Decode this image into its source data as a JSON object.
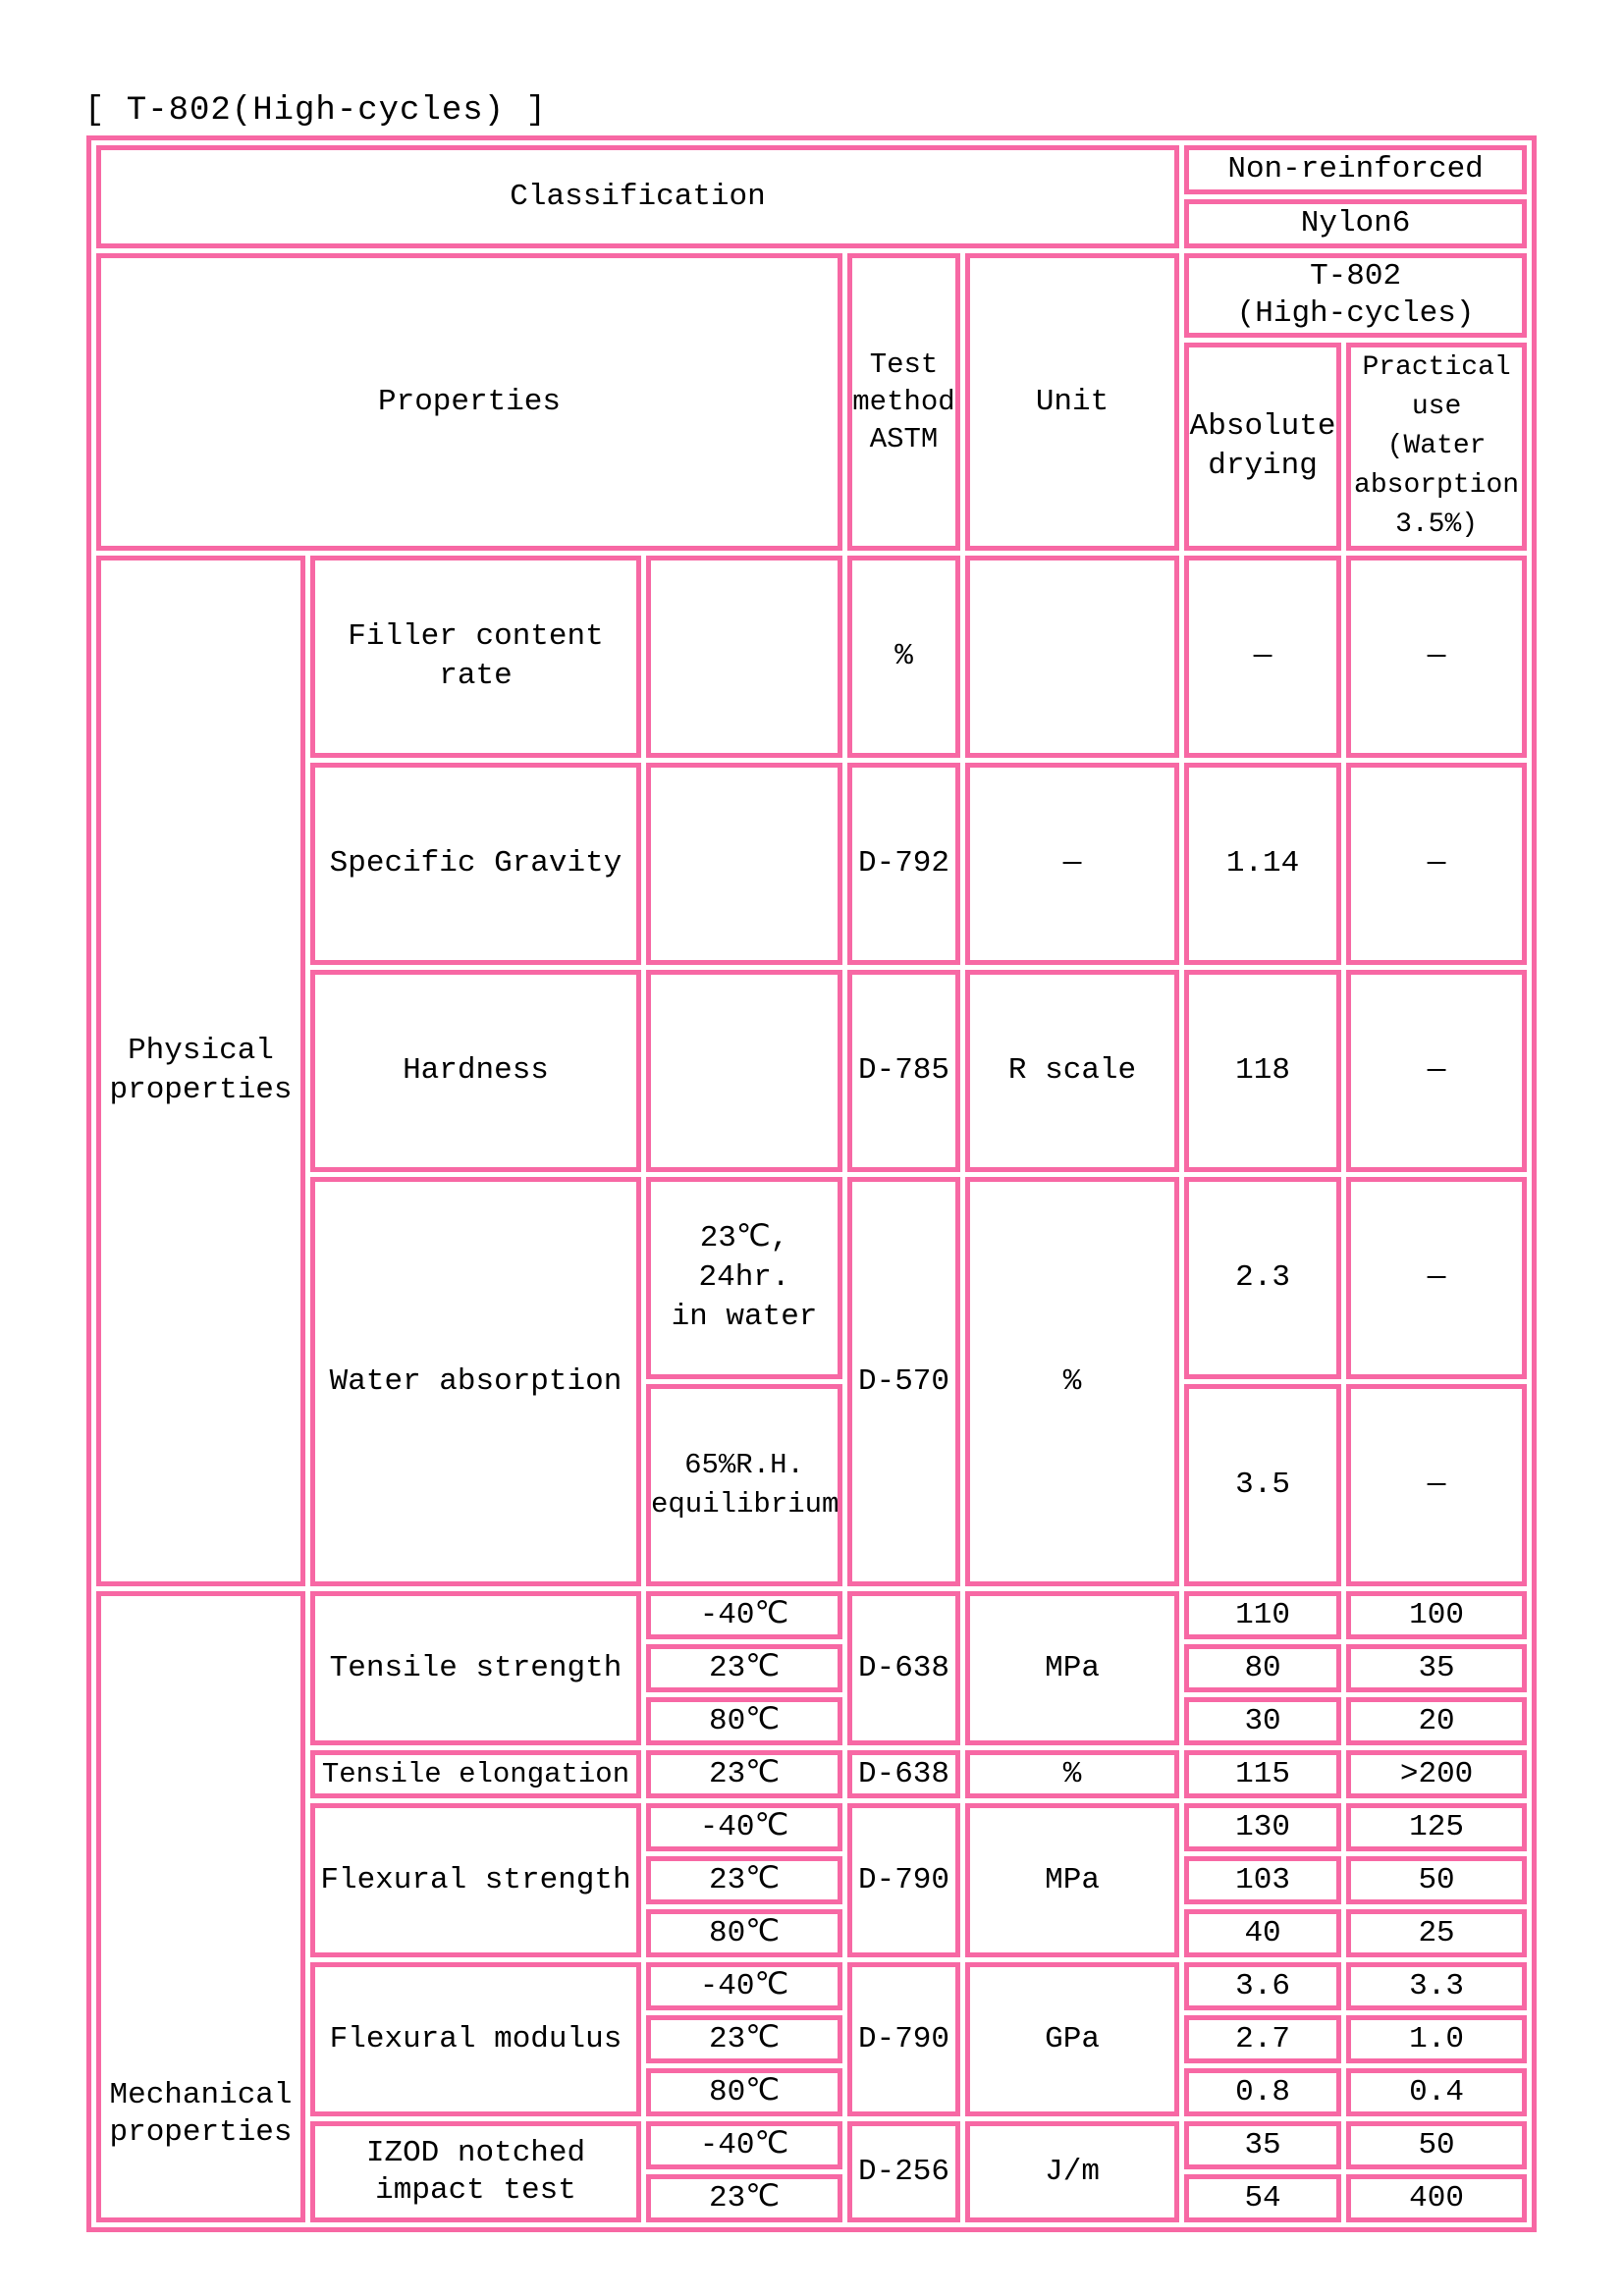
{
  "title": "[ T-802(High-cycles) ]",
  "colors": {
    "border": "#F768A4",
    "text": "#000000",
    "background": "#FFFFFF"
  },
  "header": {
    "classification": "Classification",
    "reinforcement": "Non-reinforced",
    "material": "Nylon6",
    "grade": "T-802\n(High-cycles)",
    "properties": "Properties",
    "test_method": "Test\nmethod\nASTM",
    "unit": "Unit",
    "absolute_drying": "Absolute\ndrying",
    "practical_use": "Practical\nuse\n(Water\nabsorption\n3.5%)"
  },
  "groups": {
    "physical": "Physical\nproperties",
    "mechanical": "Mechanical\nproperties"
  },
  "conditions": {
    "minus40": "-40℃",
    "c23": "23℃",
    "c80": "80℃",
    "water24h": "23℃, 24hr.\nin water",
    "rh65": "65%R.H.\nequilibrium"
  },
  "cells": {
    "filler_name": "Filler content\nrate",
    "filler_method": "%",
    "filler_abs": "—",
    "filler_prac": "—",
    "sg_name": "Specific Gravity",
    "sg_method": "D-792",
    "sg_unit": "—",
    "sg_abs": "1.14",
    "sg_prac": "—",
    "hardness_name": "Hardness",
    "hardness_method": "D-785",
    "hardness_unit": "R scale",
    "hardness_abs": "118",
    "hardness_prac": "—",
    "wa_name": "Water absorption",
    "wa_method": "D-570",
    "wa_unit": "%",
    "wa1_abs": "2.3",
    "wa1_prac": "—",
    "wa2_abs": "3.5",
    "wa2_prac": "—",
    "ts_name": "Tensile strength",
    "ts_method": "D-638",
    "ts_unit": "MPa",
    "ts1_abs": "110",
    "ts1_prac": "100",
    "ts2_abs": "80",
    "ts2_prac": "35",
    "ts3_abs": "30",
    "ts3_prac": "20",
    "te_name": "Tensile elongation",
    "te_method": "D-638",
    "te_unit": "%",
    "te_abs": "115",
    "te_prac": ">200",
    "fs_name": "Flexural strength",
    "fs_method": "D-790",
    "fs_unit": "MPa",
    "fs1_abs": "130",
    "fs1_prac": "125",
    "fs2_abs": "103",
    "fs2_prac": "50",
    "fs3_abs": "40",
    "fs3_prac": "25",
    "fm_name": "Flexural modulus",
    "fm_method": "D-790",
    "fm_unit": "GPa",
    "fm1_abs": "3.6",
    "fm1_prac": "3.3",
    "fm2_abs": "2.7",
    "fm2_prac": "1.0",
    "fm3_abs": "0.8",
    "fm3_prac": "0.4",
    "izod_name": "IZOD notched\nimpact test",
    "izod_method": "D-256",
    "izod_unit": "J/m",
    "izod1_abs": "35",
    "izod1_prac": "50",
    "izod2_abs": "54",
    "izod2_prac": "400"
  }
}
